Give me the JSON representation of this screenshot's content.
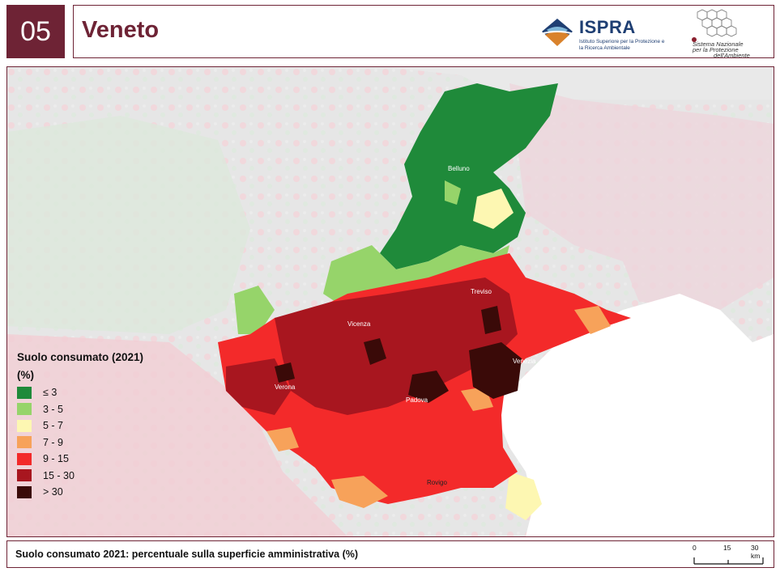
{
  "header": {
    "number": "05",
    "title": "Veneto",
    "ispra_name": "ISPRA",
    "ispra_subtitle": "Istituto Superiore per la Protezione e la Ricerca Ambientale",
    "snpa_text_1": "Sistema Nazionale",
    "snpa_text_2": "per la Protezione",
    "snpa_text_3": "dell'Ambiente"
  },
  "map": {
    "cities": [
      "Belluno",
      "Treviso",
      "Vicenza",
      "Venezia",
      "Verona",
      "Padova",
      "Rovigo"
    ]
  },
  "legend": {
    "title": "Suolo consumato (2021)",
    "unit": "(%)",
    "items": [
      {
        "label": "≤ 3",
        "color": "#1f8a3a"
      },
      {
        "label": "3 - 5",
        "color": "#96d46a"
      },
      {
        "label": "5 - 7",
        "color": "#fdf7b2"
      },
      {
        "label": "7 - 9",
        "color": "#f7a25a"
      },
      {
        "label": "9 - 15",
        "color": "#f32a2a"
      },
      {
        "label": "15 - 30",
        "color": "#a8161f"
      },
      {
        "label": "> 30",
        "color": "#3a0a08"
      }
    ]
  },
  "footer": {
    "caption": "Suolo consumato 2021: percentuale sulla superficie amministrativa (%)",
    "scale_0": "0",
    "scale_15": "15",
    "scale_30": "30 km"
  }
}
